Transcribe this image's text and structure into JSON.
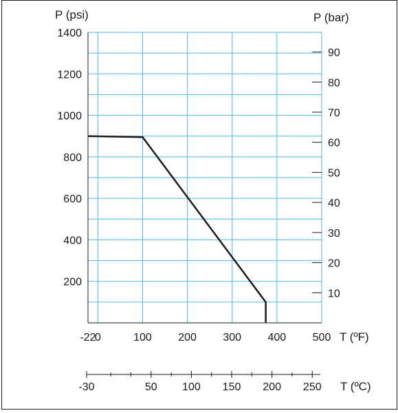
{
  "chart_data": {
    "type": "line",
    "title": "",
    "y_left_label": "P (psi)",
    "y_right_label": "P (bar)",
    "x_label": "T (ºF)",
    "x2_label": "T (ºC)",
    "x_range": [
      -22,
      500
    ],
    "y_range": [
      0,
      1400
    ],
    "x_ticks": [
      "-22",
      "0",
      "100",
      "200",
      "300",
      "400",
      "500"
    ],
    "x_tick_values": [
      -22,
      0,
      100,
      200,
      300,
      400,
      500
    ],
    "x2_ticks": [
      "-30",
      "50",
      "100",
      "150",
      "200",
      "250"
    ],
    "x2_tick_values": [
      -30,
      50,
      100,
      150,
      200,
      250
    ],
    "x2_range": [
      -30,
      260
    ],
    "x2_minor_values": [
      0,
      25,
      75,
      125,
      175,
      225
    ],
    "y_left_ticks": [
      "1400",
      "1200",
      "1000",
      "800",
      "600",
      "400",
      "200"
    ],
    "y_left_tick_values": [
      1400,
      1200,
      1000,
      800,
      600,
      400,
      200
    ],
    "y_right_ticks": [
      "90",
      "80",
      "70",
      "60",
      "50",
      "40",
      "30",
      "20",
      "10"
    ],
    "y_right_tick_values": [
      90,
      80,
      70,
      60,
      50,
      40,
      30,
      20,
      10
    ],
    "grid": true,
    "series": [
      {
        "x": [
          -22,
          100,
          375,
          375
        ],
        "y": [
          900,
          895,
          100,
          0
        ]
      }
    ],
    "colors": {
      "grid": "#4db6e8",
      "line": "#1a1a1a",
      "axis": "#1a1a1a"
    }
  }
}
